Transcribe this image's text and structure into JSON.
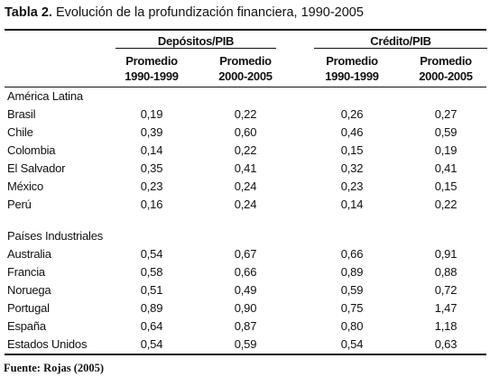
{
  "title": {
    "label": "Tabla 2.",
    "text": "Evolución de la profundización financiera, 1990-2005"
  },
  "groups": {
    "depositos": "Depósitos/PIB",
    "credito": "Crédito/PIB"
  },
  "subheaders": [
    "Promedio",
    "1990-1999",
    "Promedio",
    "2000-2005",
    "Promedio",
    "1990-1999",
    "Promedio",
    "2000-2005"
  ],
  "sections": [
    {
      "name": "América Latina",
      "rows": [
        {
          "country": "Brasil",
          "values": [
            "0,19",
            "0,22",
            "0,26",
            "0,27"
          ]
        },
        {
          "country": "Chile",
          "values": [
            "0,39",
            "0,60",
            "0,46",
            "0,59"
          ]
        },
        {
          "country": "Colombia",
          "values": [
            "0,14",
            "0,22",
            "0,15",
            "0,19"
          ]
        },
        {
          "country": "El Salvador",
          "values": [
            "0,35",
            "0,41",
            "0,32",
            "0,41"
          ]
        },
        {
          "country": "México",
          "values": [
            "0,23",
            "0,24",
            "0,23",
            "0,15"
          ]
        },
        {
          "country": "Perú",
          "values": [
            "0,16",
            "0,24",
            "0,14",
            "0,22"
          ]
        }
      ]
    },
    {
      "name": "Países Industriales",
      "rows": [
        {
          "country": "Australia",
          "values": [
            "0,54",
            "0,67",
            "0,66",
            "0,91"
          ]
        },
        {
          "country": "Francia",
          "values": [
            "0,58",
            "0,66",
            "0,89",
            "0,88"
          ]
        },
        {
          "country": "Noruega",
          "values": [
            "0,51",
            "0,49",
            "0,59",
            "0,72"
          ]
        },
        {
          "country": "Portugal",
          "values": [
            "0,89",
            "0,90",
            "0,75",
            "1,47"
          ]
        },
        {
          "country": "España",
          "values": [
            "0,64",
            "0,87",
            "0,80",
            "1,18"
          ]
        },
        {
          "country": "Estados Unidos",
          "values": [
            "0,54",
            "0,59",
            "0,54",
            "0,63"
          ]
        }
      ]
    }
  ],
  "source": "Fuente: Rojas (2005)"
}
